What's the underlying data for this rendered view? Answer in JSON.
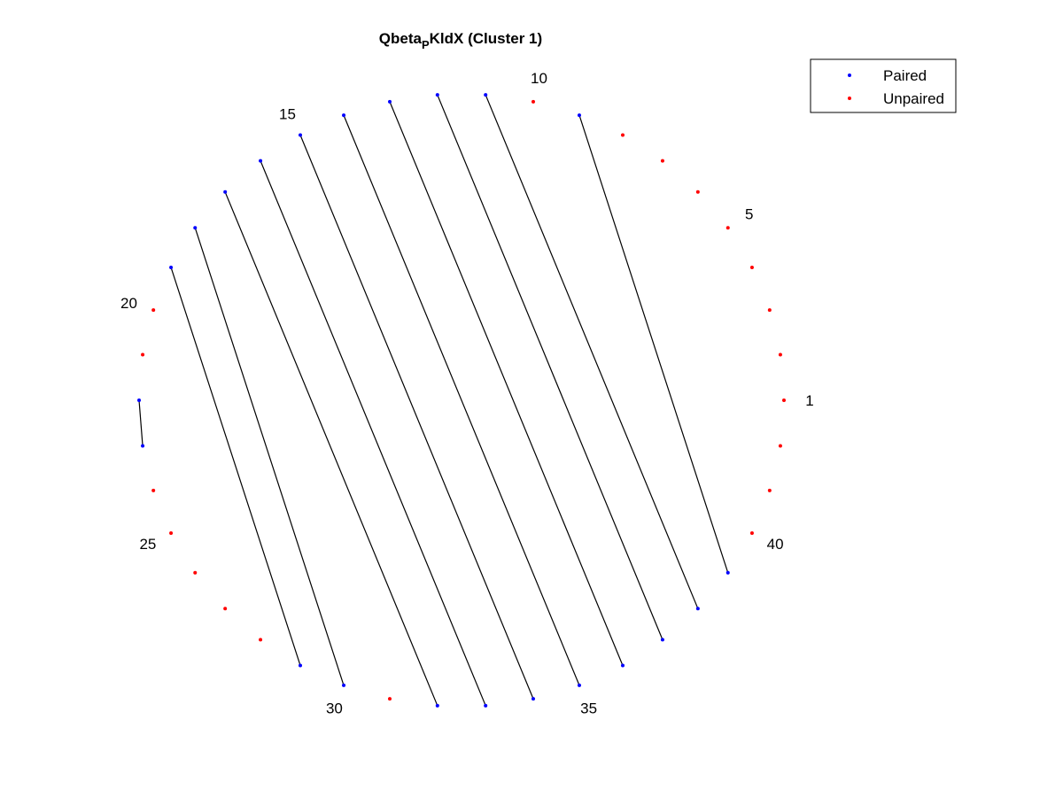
{
  "chart_data": {
    "type": "scatter",
    "layout": "circular-arc-diagram",
    "title_main": "Qbeta",
    "title_sub": "P",
    "title_rest": "KldX (Cluster 1)",
    "n_positions": 42,
    "tick_labels": [
      "1",
      "5",
      "10",
      "15",
      "20",
      "25",
      "30",
      "35",
      "40"
    ],
    "tick_positions": [
      1,
      5,
      10,
      15,
      20,
      25,
      30,
      35,
      40
    ],
    "series": [
      {
        "name": "Paired",
        "color": "#0000ff",
        "positions": [
          9,
          11,
          12,
          13,
          14,
          15,
          16,
          17,
          18,
          19,
          22,
          23,
          29,
          30,
          32,
          33,
          34,
          35,
          36,
          37,
          38,
          39
        ]
      },
      {
        "name": "Unpaired",
        "color": "#ff0000",
        "positions": [
          1,
          2,
          3,
          4,
          5,
          6,
          7,
          8,
          10,
          20,
          21,
          24,
          25,
          26,
          27,
          28,
          31,
          40,
          41,
          42
        ]
      }
    ],
    "pairs": [
      [
        9,
        39
      ],
      [
        11,
        38
      ],
      [
        12,
        37
      ],
      [
        13,
        36
      ],
      [
        14,
        35
      ],
      [
        15,
        34
      ],
      [
        16,
        33
      ],
      [
        17,
        32
      ],
      [
        18,
        30
      ],
      [
        19,
        29
      ],
      [
        22,
        23
      ]
    ],
    "pair_line_color": "#000000",
    "legend_position": "top-right"
  }
}
